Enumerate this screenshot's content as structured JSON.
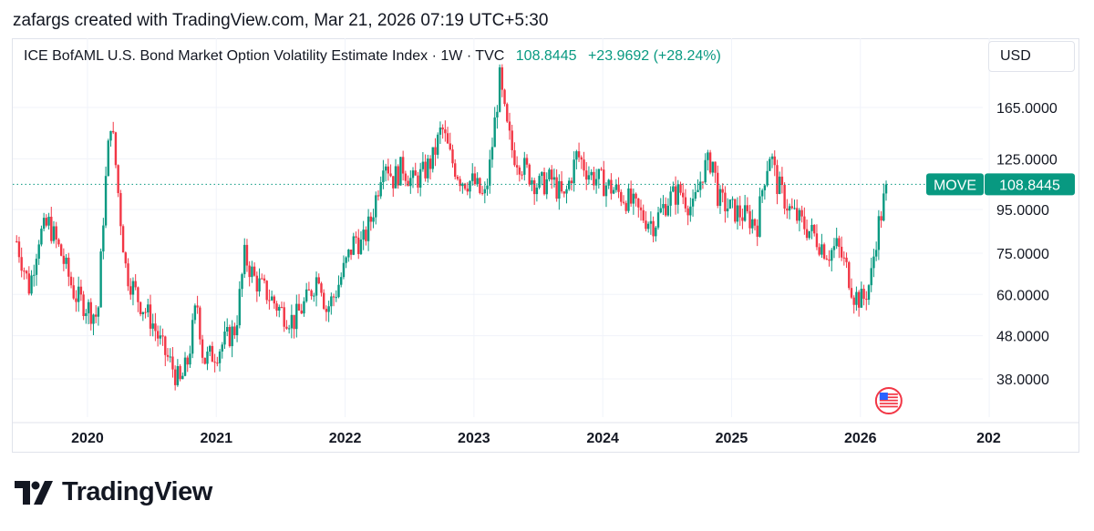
{
  "header": {
    "attribution": "zafargs created with TradingView.com, Mar 21, 2026 07:19 UTC+5:30"
  },
  "legend": {
    "symbol_text": "ICE BofAML U.S. Bond Market Option Volatility Estimate Index · 1W · TVC",
    "last_value": "108.8445",
    "change": "+23.9692 (+28.24%)"
  },
  "currency": "USD",
  "price_tag": {
    "ticker": "MOVE",
    "value": "108.8445"
  },
  "brand": {
    "name": "TradingView"
  },
  "colors": {
    "up": "#089981",
    "down": "#f23645",
    "grid": "#f0f3fa",
    "axis_text": "#131722",
    "price_line": "#089981"
  },
  "chart_data": {
    "type": "candlestick",
    "title": "ICE BofAML U.S. Bond Market Option Volatility Estimate Index",
    "interval": "1W",
    "y_scale": "log",
    "y_ticks": [
      38,
      48,
      60,
      75,
      95,
      125,
      165
    ],
    "y_tick_labels": [
      "38.0000",
      "48.0000",
      "60.0000",
      "75.0000",
      "95.0000",
      "125.0000",
      "165.0000"
    ],
    "x_tick_labels": [
      "2020",
      "2021",
      "2022",
      "2023",
      "2024",
      "2025",
      "2026",
      "202"
    ],
    "x_range": [
      2019.42,
      2026.95
    ],
    "last_value": 108.8445,
    "series": [
      {
        "name": "MOVE",
        "points": [
          [
            2019.45,
            80
          ],
          [
            2019.55,
            62
          ],
          [
            2019.62,
            82
          ],
          [
            2019.7,
            88
          ],
          [
            2019.8,
            74
          ],
          [
            2019.9,
            60
          ],
          [
            2020.0,
            56
          ],
          [
            2020.08,
            53
          ],
          [
            2020.13,
            100
          ],
          [
            2020.18,
            155
          ],
          [
            2020.21,
            130
          ],
          [
            2020.25,
            95
          ],
          [
            2020.3,
            68
          ],
          [
            2020.4,
            58
          ],
          [
            2020.5,
            52
          ],
          [
            2020.58,
            45
          ],
          [
            2020.65,
            41
          ],
          [
            2020.72,
            37
          ],
          [
            2020.78,
            42
          ],
          [
            2020.85,
            58
          ],
          [
            2020.9,
            42
          ],
          [
            2021.0,
            44
          ],
          [
            2021.1,
            48
          ],
          [
            2021.15,
            50
          ],
          [
            2021.22,
            74
          ],
          [
            2021.3,
            65
          ],
          [
            2021.4,
            60
          ],
          [
            2021.5,
            55
          ],
          [
            2021.6,
            52
          ],
          [
            2021.7,
            58
          ],
          [
            2021.8,
            68
          ],
          [
            2021.85,
            55
          ],
          [
            2021.92,
            60
          ],
          [
            2022.0,
            70
          ],
          [
            2022.08,
            82
          ],
          [
            2022.13,
            78
          ],
          [
            2022.2,
            90
          ],
          [
            2022.25,
            105
          ],
          [
            2022.3,
            128
          ],
          [
            2022.37,
            112
          ],
          [
            2022.45,
            120
          ],
          [
            2022.52,
            110
          ],
          [
            2022.6,
            115
          ],
          [
            2022.68,
            125
          ],
          [
            2022.75,
            148
          ],
          [
            2022.82,
            125
          ],
          [
            2022.9,
            112
          ],
          [
            2023.0,
            110
          ],
          [
            2023.08,
            100
          ],
          [
            2023.12,
            118
          ],
          [
            2023.2,
            192
          ],
          [
            2023.25,
            150
          ],
          [
            2023.3,
            130
          ],
          [
            2023.4,
            118
          ],
          [
            2023.5,
            108
          ],
          [
            2023.6,
            112
          ],
          [
            2023.7,
            100
          ],
          [
            2023.8,
            128
          ],
          [
            2023.9,
            115
          ],
          [
            2024.0,
            110
          ],
          [
            2024.1,
            105
          ],
          [
            2024.2,
            100
          ],
          [
            2024.3,
            92
          ],
          [
            2024.4,
            88
          ],
          [
            2024.5,
            100
          ],
          [
            2024.6,
            105
          ],
          [
            2024.7,
            95
          ],
          [
            2024.78,
            118
          ],
          [
            2024.85,
            125
          ],
          [
            2024.9,
            100
          ],
          [
            2025.0,
            95
          ],
          [
            2025.1,
            92
          ],
          [
            2025.2,
            88
          ],
          [
            2025.25,
            112
          ],
          [
            2025.3,
            130
          ],
          [
            2025.35,
            110
          ],
          [
            2025.45,
            95
          ],
          [
            2025.55,
            88
          ],
          [
            2025.65,
            82
          ],
          [
            2025.75,
            75
          ],
          [
            2025.82,
            78
          ],
          [
            2025.9,
            68
          ],
          [
            2025.95,
            60
          ],
          [
            2026.02,
            58
          ],
          [
            2026.08,
            65
          ],
          [
            2026.13,
            85
          ],
          [
            2026.17,
            95
          ],
          [
            2026.2,
            108.84
          ]
        ]
      }
    ]
  }
}
